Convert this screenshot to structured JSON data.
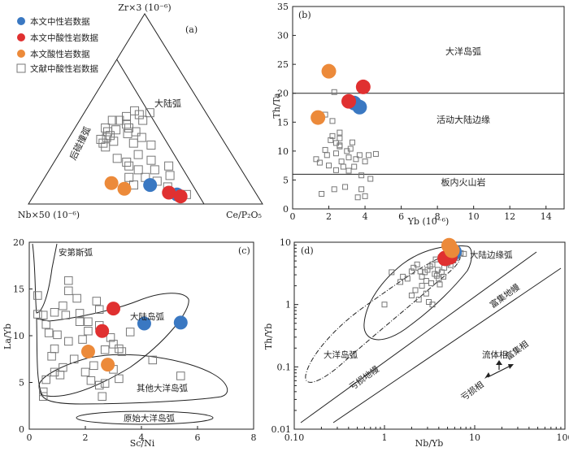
{
  "colors": {
    "neutral": "#3a78c2",
    "intermediate_acid": "#e03030",
    "acid": "#ec8a3a",
    "literature": "#777777",
    "axis": "#222222"
  },
  "chart_data": [
    {
      "id": "a",
      "type": "scatter",
      "panel_label": "(a)",
      "ternary": true,
      "apex_top": "Zr×3 (10⁻⁶)",
      "apex_left": "Nb×50 (10⁻⁶)",
      "apex_right": "Ce/P₂O₅",
      "fields": [
        "后碰撞弧",
        "大陆弧"
      ],
      "legend": [
        "本文中性岩数据",
        "本文中酸性岩数据",
        "本文酸性岩数据",
        "文献中酸性岩数据"
      ],
      "series": [
        {
          "name": "本文中性岩数据",
          "points": [
            [
              0.47,
              0.1,
              0.43
            ],
            [
              0.61,
              0.05,
              0.34
            ]
          ]
        },
        {
          "name": "本文中酸性岩数据",
          "points": [
            [
              0.57,
              0.06,
              0.37
            ],
            [
              0.63,
              0.04,
              0.33
            ]
          ]
        },
        {
          "name": "本文酸性岩数据",
          "points": [
            [
              0.3,
              0.11,
              0.59
            ],
            [
              0.37,
              0.08,
              0.55
            ]
          ]
        },
        {
          "name": "文献中酸性岩数据",
          "points": [
            [
              0.18,
              0.3,
              0.52
            ],
            [
              0.16,
              0.32,
              0.52
            ],
            [
              0.16,
              0.35,
              0.49
            ],
            [
              0.18,
              0.39,
              0.43
            ],
            [
              0.14,
              0.34,
              0.52
            ],
            [
              0.15,
              0.38,
              0.47
            ],
            [
              0.17,
              0.36,
              0.47
            ],
            [
              0.17,
              0.44,
              0.39
            ],
            [
              0.14,
              0.44,
              0.42
            ],
            [
              0.19,
              0.46,
              0.35
            ],
            [
              0.21,
              0.42,
              0.37
            ],
            [
              0.23,
              0.4,
              0.37
            ],
            [
              0.24,
              0.37,
              0.39
            ],
            [
              0.21,
              0.49,
              0.3
            ],
            [
              0.24,
              0.47,
              0.29
            ],
            [
              0.27,
              0.44,
              0.29
            ],
            [
              0.27,
              0.38,
              0.35
            ],
            [
              0.29,
              0.32,
              0.39
            ],
            [
              0.31,
              0.35,
              0.34
            ],
            [
              0.37,
              0.31,
              0.32
            ],
            [
              0.34,
              0.26,
              0.4
            ],
            [
              0.41,
              0.23,
              0.36
            ],
            [
              0.45,
              0.18,
              0.37
            ],
            [
              0.31,
              0.22,
              0.47
            ],
            [
              0.38,
              0.18,
              0.44
            ],
            [
              0.43,
              0.14,
              0.43
            ],
            [
              0.49,
              0.12,
              0.39
            ],
            [
              0.53,
              0.15,
              0.32
            ],
            [
              0.55,
              0.09,
              0.36
            ],
            [
              0.58,
              0.06,
              0.36
            ],
            [
              0.65,
              0.05,
              0.3
            ],
            [
              0.4,
              0.1,
              0.5
            ],
            [
              0.33,
              0.2,
              0.47
            ],
            [
              0.26,
              0.24,
              0.5
            ],
            [
              0.36,
              0.14,
              0.5
            ],
            [
              0.2,
              0.33,
              0.47
            ],
            [
              0.13,
              0.4,
              0.47
            ],
            [
              0.28,
              0.48,
              0.24
            ],
            [
              0.5,
              0.2,
              0.3
            ]
          ]
        }
      ],
      "boundary": [
        [
          0.0,
          0.76,
          0.24
        ],
        [
          0.75,
          0.0,
          0.25
        ]
      ]
    },
    {
      "id": "b",
      "type": "scatter",
      "panel_label": "(b)",
      "xlabel": "Yb (10⁻⁶)",
      "ylabel": "Th/Ta",
      "xlim": [
        0,
        15
      ],
      "ylim": [
        0,
        35
      ],
      "xticks": [
        "0",
        "2",
        "4",
        "6",
        "8",
        "10",
        "12",
        "14"
      ],
      "yticks": [
        "0",
        "5",
        "10",
        "15",
        "20",
        "25",
        "30",
        "35"
      ],
      "hlines": [
        20,
        6
      ],
      "fields": [
        "大洋岛弧",
        "活动大陆边缘",
        "板内火山岩"
      ],
      "series": [
        {
          "name": "本文中性岩数据",
          "points": [
            [
              3.4,
              18.3
            ],
            [
              3.7,
              17.6
            ]
          ]
        },
        {
          "name": "本文中酸性岩数据",
          "points": [
            [
              3.9,
              21.1
            ],
            [
              3.1,
              18.6
            ]
          ]
        },
        {
          "name": "本文酸性岩数据",
          "points": [
            [
              2.0,
              23.8
            ],
            [
              1.4,
              15.8
            ]
          ]
        },
        {
          "name": "文献中酸性岩数据",
          "points": [
            [
              2.3,
              20.2
            ],
            [
              1.8,
              16.3
            ],
            [
              2.2,
              15.2
            ],
            [
              2.6,
              13.2
            ],
            [
              2.2,
              12.6
            ],
            [
              2.4,
              11.4
            ],
            [
              2.6,
              10.8
            ],
            [
              1.3,
              8.6
            ],
            [
              1.5,
              8.0
            ],
            [
              1.9,
              9.3
            ],
            [
              2.0,
              7.5
            ],
            [
              2.4,
              6.7
            ],
            [
              2.8,
              7.3
            ],
            [
              3.1,
              8.9
            ],
            [
              3.1,
              6.6
            ],
            [
              3.4,
              7.3
            ],
            [
              3.5,
              8.6
            ],
            [
              3.7,
              9.3
            ],
            [
              4.0,
              8.2
            ],
            [
              4.2,
              9.3
            ],
            [
              4.6,
              9.5
            ],
            [
              3.8,
              5.8
            ],
            [
              4.3,
              5.2
            ],
            [
              2.9,
              3.8
            ],
            [
              3.8,
              3.4
            ],
            [
              2.3,
              3.4
            ],
            [
              1.6,
              2.6
            ],
            [
              3.6,
              2.0
            ],
            [
              4.0,
              2.2
            ],
            [
              2.6,
              12.2
            ],
            [
              2.1,
              11.9
            ],
            [
              3.2,
              10.4
            ],
            [
              2.4,
              9.6
            ],
            [
              2.7,
              8.2
            ],
            [
              3.0,
              10.0
            ],
            [
              1.8,
              10.2
            ],
            [
              2.6,
              11.0
            ],
            [
              3.3,
              11.5
            ]
          ]
        }
      ]
    },
    {
      "id": "c",
      "type": "scatter",
      "panel_label": "(c)",
      "xlabel": "Sc/Ni",
      "ylabel": "La/Yb",
      "xlim": [
        0,
        8
      ],
      "ylim": [
        0,
        20
      ],
      "xticks": [
        "0",
        "2",
        "4",
        "6",
        "8"
      ],
      "yticks": [
        "0",
        "5",
        "10",
        "15",
        "20"
      ],
      "fields": [
        "安第斯弧",
        "大陆岛弧",
        "其他大洋岛弧",
        "原始大洋岛弧"
      ],
      "series": [
        {
          "name": "本文中性岩数据",
          "points": [
            [
              5.4,
              11.4
            ],
            [
              4.1,
              11.3
            ]
          ]
        },
        {
          "name": "本文中酸性岩数据",
          "points": [
            [
              3.0,
              12.9
            ],
            [
              2.6,
              10.5
            ]
          ]
        },
        {
          "name": "本文酸性岩数据",
          "points": [
            [
              2.1,
              8.3
            ],
            [
              2.8,
              6.9
            ]
          ]
        },
        {
          "name": "文献中酸性岩数据",
          "points": [
            [
              0.3,
              14.3
            ],
            [
              0.3,
              12.3
            ],
            [
              0.5,
              12.2
            ],
            [
              0.6,
              11.2
            ],
            [
              0.7,
              10.3
            ],
            [
              0.9,
              12.5
            ],
            [
              1.2,
              13.2
            ],
            [
              1.4,
              14.8
            ],
            [
              1.4,
              15.9
            ],
            [
              1.7,
              14.0
            ],
            [
              1.3,
              12.2
            ],
            [
              1.8,
              12.4
            ],
            [
              1.8,
              11.5
            ],
            [
              2.1,
              11.5
            ],
            [
              2.4,
              13.7
            ],
            [
              2.5,
              12.8
            ],
            [
              2.5,
              11.1
            ],
            [
              2.1,
              10.5
            ],
            [
              1.9,
              9.6
            ],
            [
              1.4,
              9.4
            ],
            [
              1.0,
              10.1
            ],
            [
              0.9,
              8.6
            ],
            [
              0.8,
              7.8
            ],
            [
              1.2,
              6.6
            ],
            [
              0.9,
              6.1
            ],
            [
              0.6,
              5.3
            ],
            [
              0.5,
              4.0
            ],
            [
              0.5,
              3.5
            ],
            [
              2.0,
              6.1
            ],
            [
              2.2,
              5.2
            ],
            [
              2.5,
              4.7
            ],
            [
              2.7,
              4.9
            ],
            [
              2.6,
              3.5
            ],
            [
              3.0,
              6.4
            ],
            [
              3.2,
              8.6
            ],
            [
              3.0,
              9.1
            ],
            [
              3.3,
              8.3
            ],
            [
              4.4,
              7.4
            ],
            [
              3.2,
              5.4
            ],
            [
              5.4,
              5.7
            ],
            [
              2.7,
              8.5
            ],
            [
              2.9,
              9.8
            ],
            [
              1.6,
              7.5
            ],
            [
              2.3,
              6.8
            ],
            [
              1.1,
              5.8
            ],
            [
              3.6,
              10.4
            ]
          ]
        }
      ]
    },
    {
      "id": "d",
      "type": "scatter",
      "panel_label": "(d)",
      "xlabel": "Nb/Yb",
      "ylabel": "Th/Yb",
      "xscale": "log",
      "yscale": "log",
      "xlim": [
        0.1,
        100
      ],
      "ylim": [
        0.01,
        10
      ],
      "xticks": [
        "0.10",
        "1",
        "10",
        "100"
      ],
      "yticks": [
        "0.01",
        "0.1",
        "1",
        "10"
      ],
      "fields": [
        "大陆边缘弧",
        "大洋岛弧",
        "富集地幔",
        "亏损地幔",
        "流体相",
        "富集相",
        "亏损相"
      ],
      "series": [
        {
          "name": "本文中性岩数据",
          "points": [
            [
              5.9,
              7.0
            ],
            [
              5.6,
              6.4
            ]
          ]
        },
        {
          "name": "本文中酸性岩数据",
          "points": [
            [
              4.7,
              5.5
            ],
            [
              5.3,
              5.8
            ]
          ]
        },
        {
          "name": "本文酸性岩数据",
          "points": [
            [
              5.2,
              8.8
            ],
            [
              5.6,
              7.4
            ]
          ]
        },
        {
          "name": "文献中酸性岩数据",
          "points": [
            [
              1.6,
              2.8
            ],
            [
              1.5,
              2.3
            ],
            [
              1.8,
              2.6
            ],
            [
              2.0,
              3.4
            ],
            [
              2.1,
              3.9
            ],
            [
              2.3,
              4.4
            ],
            [
              2.5,
              3.4
            ],
            [
              2.6,
              2.8
            ],
            [
              2.8,
              3.3
            ],
            [
              3.0,
              3.6
            ],
            [
              3.2,
              4.1
            ],
            [
              3.4,
              4.4
            ],
            [
              3.6,
              3.1
            ],
            [
              3.8,
              2.9
            ],
            [
              3.9,
              3.6
            ],
            [
              4.0,
              2.6
            ],
            [
              4.1,
              2.1
            ],
            [
              4.3,
              3.3
            ],
            [
              4.6,
              3.9
            ],
            [
              5.0,
              4.6
            ],
            [
              5.4,
              4.3
            ],
            [
              5.8,
              5.1
            ],
            [
              6.3,
              5.6
            ],
            [
              7.0,
              6.7
            ],
            [
              7.6,
              6.5
            ],
            [
              2.6,
              2.0
            ],
            [
              2.9,
              1.5
            ],
            [
              2.2,
              1.7
            ],
            [
              2.0,
              1.4
            ],
            [
              3.1,
              1.1
            ],
            [
              3.4,
              1.0
            ],
            [
              2.4,
              1.2
            ],
            [
              1.0,
              1.0
            ],
            [
              1.2,
              3.3
            ],
            [
              4.2,
              5.7
            ],
            [
              3.7,
              5.3
            ],
            [
              4.5,
              2.8
            ],
            [
              2.9,
              2.4
            ],
            [
              3.3,
              2.2
            ]
          ]
        }
      ]
    }
  ]
}
